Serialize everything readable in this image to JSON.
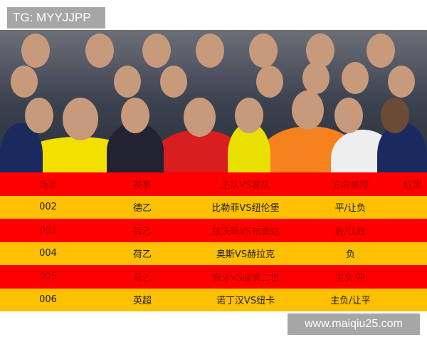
{
  "watermark_top": "TG: MYYJJPP",
  "watermark_bottom": "www.maiqiu25.com",
  "colors": {
    "header_row": "#ff0000",
    "odd_row": "#ffc000",
    "red_row": "#ff0000"
  },
  "table": {
    "headers": [
      "场次",
      "赛事",
      "主队VS客队",
      "方向推荐",
      "红黑"
    ],
    "rows": [
      {
        "no": "002",
        "league": "德乙",
        "match": "比勒菲VS纽伦堡",
        "pick": "平/让负",
        "result": ""
      },
      {
        "no": "003",
        "league": "荷乙",
        "match": "兹沃勒VS布雷达",
        "pick": "胜/让胜",
        "result": ""
      },
      {
        "no": "004",
        "league": "荷乙",
        "match": "奥斯VS赫拉克",
        "pick": "负",
        "result": ""
      },
      {
        "no": "005",
        "league": "荷乙",
        "match": "海牙VS威廉二世",
        "pick": "主负/平",
        "result": ""
      },
      {
        "no": "006",
        "league": "英超",
        "match": "诺丁汉VS纽卡",
        "pick": "主负/让平",
        "result": ""
      }
    ]
  }
}
